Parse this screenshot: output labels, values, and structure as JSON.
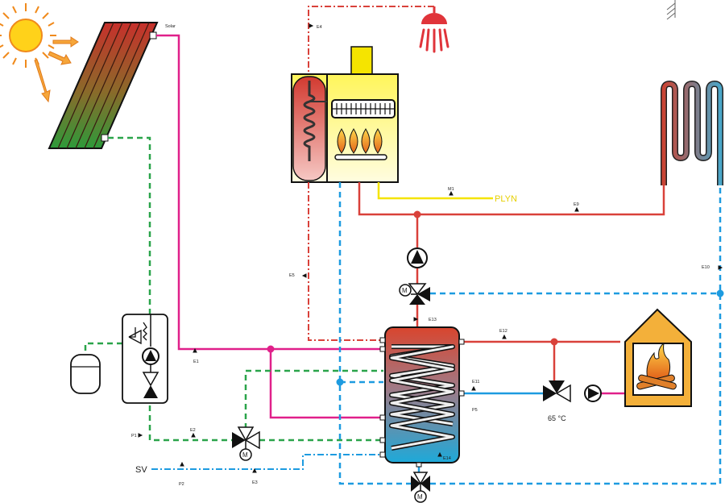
{
  "labels": {
    "solar": "Solar",
    "e4": "E4",
    "m1": "M1",
    "plyn": "PLYN",
    "e9": "E9",
    "e5": "E5",
    "e10": "E10",
    "e13": "E13",
    "e12": "E12",
    "e1": "E1",
    "e11": "E11",
    "p5": "P5",
    "p1": "P1",
    "e2": "E2",
    "sv": "SV",
    "p2": "P2",
    "e3": "E3",
    "e14": "E14",
    "temp": "65 °C",
    "motor": "M"
  },
  "colors": {
    "hot": "#d9413a",
    "cold": "#1d9be0",
    "solar_pipe": "#e0208a",
    "glycol": "#2aa44a",
    "gas": "#f5e400",
    "fireplace": "#f3b03a",
    "tank_top": "#d94a32",
    "tank_bottom": "#1fa8d8"
  }
}
